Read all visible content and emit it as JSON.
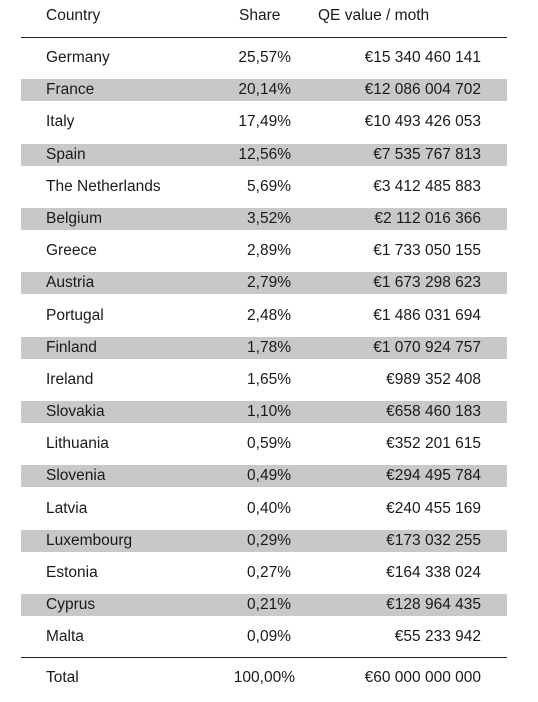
{
  "header": {
    "country": "Country",
    "share": "Share",
    "value": "QE value / moth"
  },
  "rows": [
    {
      "country": "Germany",
      "share": "25,57%",
      "value": "€15 340 460 141"
    },
    {
      "country": "France",
      "share": "20,14%",
      "value": "€12 086 004 702"
    },
    {
      "country": "Italy",
      "share": "17,49%",
      "value": "€10 493 426 053"
    },
    {
      "country": "Spain",
      "share": "12,56%",
      "value": "€7 535 767 813"
    },
    {
      "country": "The Netherlands",
      "share": "5,69%",
      "value": "€3 412 485 883"
    },
    {
      "country": "Belgium",
      "share": "3,52%",
      "value": "€2 112 016 366"
    },
    {
      "country": "Greece",
      "share": "2,89%",
      "value": "€1 733 050 155"
    },
    {
      "country": "Austria",
      "share": "2,79%",
      "value": "€1 673 298 623"
    },
    {
      "country": "Portugal",
      "share": "2,48%",
      "value": "€1 486 031 694"
    },
    {
      "country": "Finland",
      "share": "1,78%",
      "value": "€1 070 924 757"
    },
    {
      "country": "Ireland",
      "share": "1,65%",
      "value": "€989 352 408"
    },
    {
      "country": "Slovakia",
      "share": "1,10%",
      "value": "€658 460 183"
    },
    {
      "country": "Lithuania",
      "share": "0,59%",
      "value": "€352 201 615"
    },
    {
      "country": "Slovenia",
      "share": "0,49%",
      "value": "€294 495 784"
    },
    {
      "country": "Latvia",
      "share": "0,40%",
      "value": "€240 455 169"
    },
    {
      "country": "Luxembourg",
      "share": "0,29%",
      "value": "€173 032 255"
    },
    {
      "country": "Estonia",
      "share": "0,27%",
      "value": "€164 338 024"
    },
    {
      "country": "Cyprus",
      "share": "0,21%",
      "value": "€128 964 435"
    },
    {
      "country": "Malta",
      "share": "0,09%",
      "value": "€55 233 942"
    }
  ],
  "total": {
    "country": "Total",
    "share": "100,00%",
    "value": "€60 000 000 000"
  },
  "colors": {
    "row_shade": "#c8c8c8",
    "text": "#1a1a1a",
    "rule": "#222222"
  }
}
